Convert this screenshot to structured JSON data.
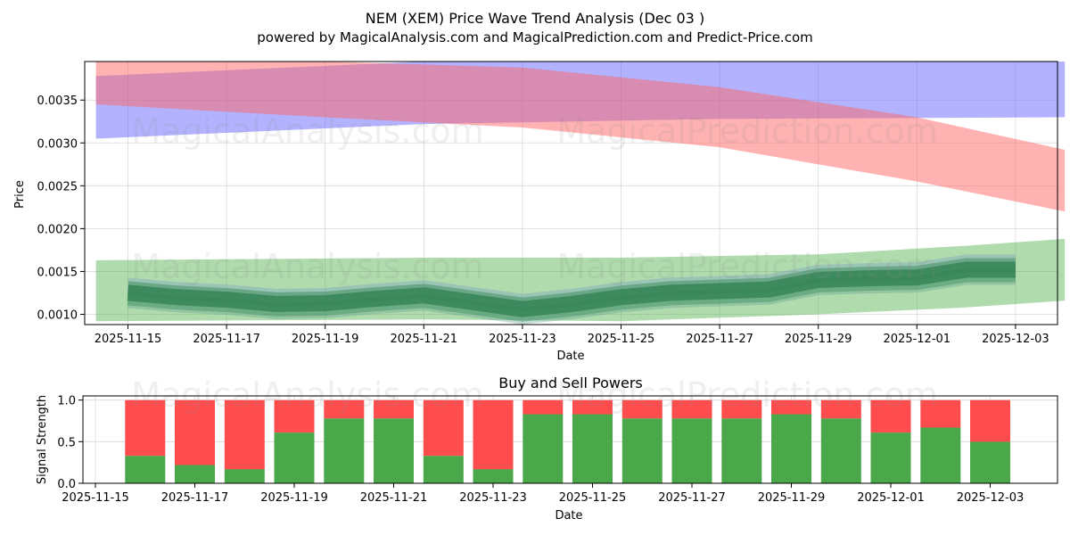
{
  "chart_data": [
    {
      "type": "area",
      "title": "NEM (XEM) Price Wave Trend Analysis (Dec 03 )",
      "subtitle": "powered by MagicalAnalysis.com and MagicalPrediction.com and Predict-Price.com",
      "xlabel": "Date",
      "ylabel": "Price",
      "xlim": [
        "2025-11-14.2",
        "2025-12-04.0"
      ],
      "ylim": [
        0.00088,
        0.00395
      ],
      "x_ticks": [
        "2025-11-15",
        "2025-11-17",
        "2025-11-19",
        "2025-11-21",
        "2025-11-23",
        "2025-11-25",
        "2025-11-27",
        "2025-11-29",
        "2025-12-01",
        "2025-12-03"
      ],
      "y_ticks": [
        "0.0010",
        "0.0015",
        "0.0020",
        "0.0025",
        "0.0030",
        "0.0035"
      ],
      "grid": true,
      "bands": [
        {
          "name": "blue-upward-wave",
          "color": "#6666ff",
          "opacity": 0.5,
          "points": [
            {
              "d": 0.0,
              "lo": 0.00305,
              "hi": 0.00378
            },
            {
              "d": 6.0,
              "lo": 0.00322,
              "hi": 0.00395
            },
            {
              "d": 12.0,
              "lo": 0.00328,
              "hi": 0.00395
            },
            {
              "d": 19.0,
              "lo": 0.0033,
              "hi": 0.00396
            }
          ]
        },
        {
          "name": "red-downward-wave",
          "color": "#ff6666",
          "opacity": 0.5,
          "points": [
            {
              "d": 0.0,
              "lo": 0.00345,
              "hi": 0.00398
            },
            {
              "d": 4.0,
              "lo": 0.0033,
              "hi": 0.00398
            },
            {
              "d": 8.0,
              "lo": 0.00318,
              "hi": 0.00388
            },
            {
              "d": 12.0,
              "lo": 0.00295,
              "hi": 0.00365
            },
            {
              "d": 16.0,
              "lo": 0.00255,
              "hi": 0.0033
            },
            {
              "d": 19.0,
              "lo": 0.0022,
              "hi": 0.00292
            }
          ]
        },
        {
          "name": "green-support-band",
          "color": "#4daf4a",
          "opacity": 0.45,
          "points": [
            {
              "d": 0.0,
              "lo": 0.00092,
              "hi": 0.00163
            },
            {
              "d": 6.0,
              "lo": 0.00094,
              "hi": 0.00166
            },
            {
              "d": 10.0,
              "lo": 0.00092,
              "hi": 0.00166
            },
            {
              "d": 14.0,
              "lo": 0.001,
              "hi": 0.0017
            },
            {
              "d": 17.0,
              "lo": 0.00108,
              "hi": 0.0018
            },
            {
              "d": 19.0,
              "lo": 0.00116,
              "hi": 0.00188
            }
          ]
        }
      ],
      "price_line": {
        "name": "price-wave",
        "dates": [
          "2025-11-15",
          "2025-11-16",
          "2025-11-17",
          "2025-11-18",
          "2025-11-19",
          "2025-11-20",
          "2025-11-21",
          "2025-11-22",
          "2025-11-23",
          "2025-11-24",
          "2025-11-25",
          "2025-11-26",
          "2025-11-27",
          "2025-11-28",
          "2025-11-29",
          "2025-11-30",
          "2025-12-01",
          "2025-12-02",
          "2025-12-03"
        ],
        "values": [
          0.00125,
          0.0012,
          0.00117,
          0.00112,
          0.00113,
          0.00118,
          0.00122,
          0.00114,
          0.00106,
          0.00112,
          0.0012,
          0.00125,
          0.00127,
          0.00129,
          0.0014,
          0.00142,
          0.00143,
          0.00152,
          0.00152
        ]
      },
      "watermarks": [
        "MagicalAnalysis.com",
        "MagicalPrediction.com"
      ]
    },
    {
      "type": "bar",
      "title": "Buy and Sell Powers",
      "xlabel": "Date",
      "ylabel": "Signal Strength",
      "ylim": [
        0,
        1.05
      ],
      "x_ticks": [
        "2025-11-15",
        "2025-11-17",
        "2025-11-19",
        "2025-11-21",
        "2025-11-23",
        "2025-11-25",
        "2025-11-27",
        "2025-11-29",
        "2025-12-01",
        "2025-12-03"
      ],
      "y_ticks": [
        "0.0",
        "0.5",
        "1.0"
      ],
      "grid": true,
      "categories": [
        "2025-11-16",
        "2025-11-17",
        "2025-11-18",
        "2025-11-19",
        "2025-11-20",
        "2025-11-21",
        "2025-11-22",
        "2025-11-23",
        "2025-11-24",
        "2025-11-25",
        "2025-11-26",
        "2025-11-27",
        "2025-11-28",
        "2025-11-29",
        "2025-11-30",
        "2025-12-01",
        "2025-12-02",
        "2025-12-03"
      ],
      "series": [
        {
          "name": "Buy",
          "color": "#4aa84a",
          "values": [
            0.33,
            0.22,
            0.17,
            0.61,
            0.78,
            0.78,
            0.33,
            0.17,
            0.83,
            0.83,
            0.78,
            0.78,
            0.78,
            0.83,
            0.78,
            0.61,
            0.67,
            0.5
          ]
        },
        {
          "name": "Sell",
          "color": "#ff4d4d",
          "values": [
            0.67,
            0.78,
            0.83,
            0.39,
            0.22,
            0.22,
            0.67,
            0.83,
            0.17,
            0.17,
            0.22,
            0.22,
            0.22,
            0.17,
            0.22,
            0.39,
            0.33,
            0.5
          ]
        }
      ],
      "watermarks": [
        "MagicalAnalysis.com",
        "MagicalPrediction.com"
      ]
    }
  ]
}
